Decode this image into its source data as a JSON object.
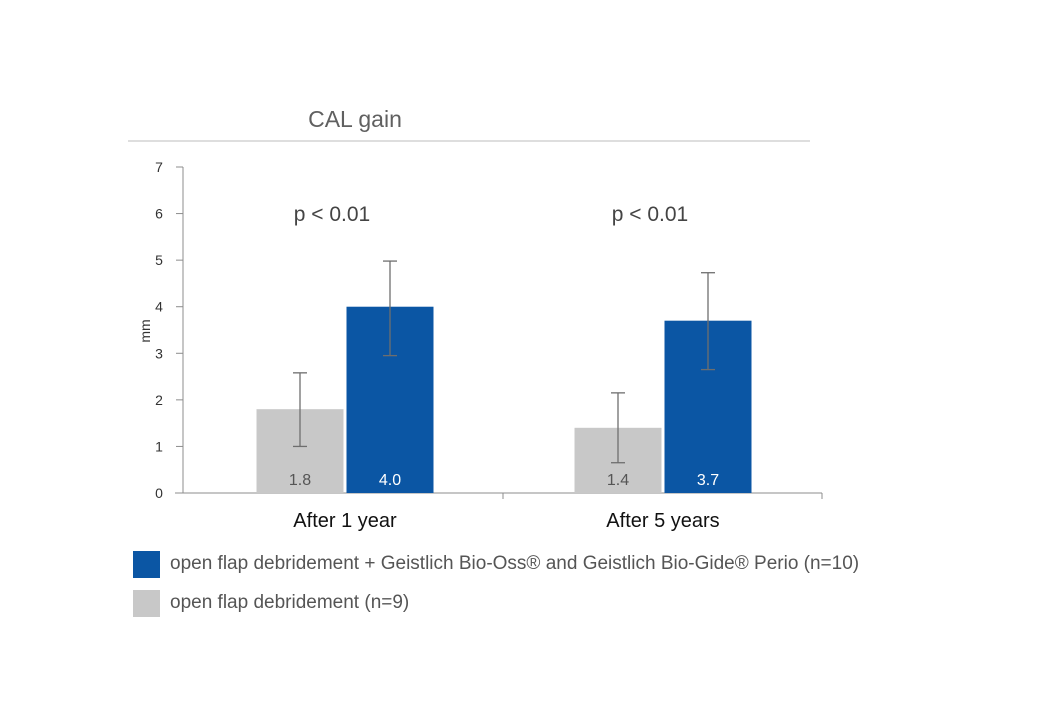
{
  "chart_data": {
    "type": "bar",
    "title": "CAL gain",
    "ylabel": "mm",
    "xlabel": "",
    "ylim": [
      0,
      7
    ],
    "yticks": [
      0,
      1,
      2,
      3,
      4,
      5,
      6,
      7
    ],
    "categories": [
      "After 1 year",
      "After 5 years"
    ],
    "series": [
      {
        "name": "open flap debridement (n=9)",
        "color": "#c8c8c8",
        "values": [
          1.8,
          1.4
        ],
        "value_labels": [
          "1.8",
          "1.4"
        ],
        "error_low": [
          1.0,
          0.65
        ],
        "error_high": [
          2.58,
          2.15
        ]
      },
      {
        "name": "open flap debridement + Geistlich Bio-Oss® and Geistlich Bio-Gide® Perio (n=10)",
        "color": "#0b56a4",
        "values": [
          4.0,
          3.7
        ],
        "value_labels": [
          "4.0",
          "3.7"
        ],
        "error_low": [
          2.95,
          2.65
        ],
        "error_high": [
          4.98,
          4.73
        ]
      }
    ],
    "annotations": [
      "p < 0.01",
      "p < 0.01"
    ],
    "grid": false,
    "legend_position": "bottom"
  },
  "legend": [
    {
      "label": "open flap debridement + Geistlich Bio-Oss® and Geistlich Bio-Gide® Perio (n=10)",
      "color": "#0b56a4"
    },
    {
      "label": "open flap debridement (n=9)",
      "color": "#c8c8c8"
    }
  ]
}
